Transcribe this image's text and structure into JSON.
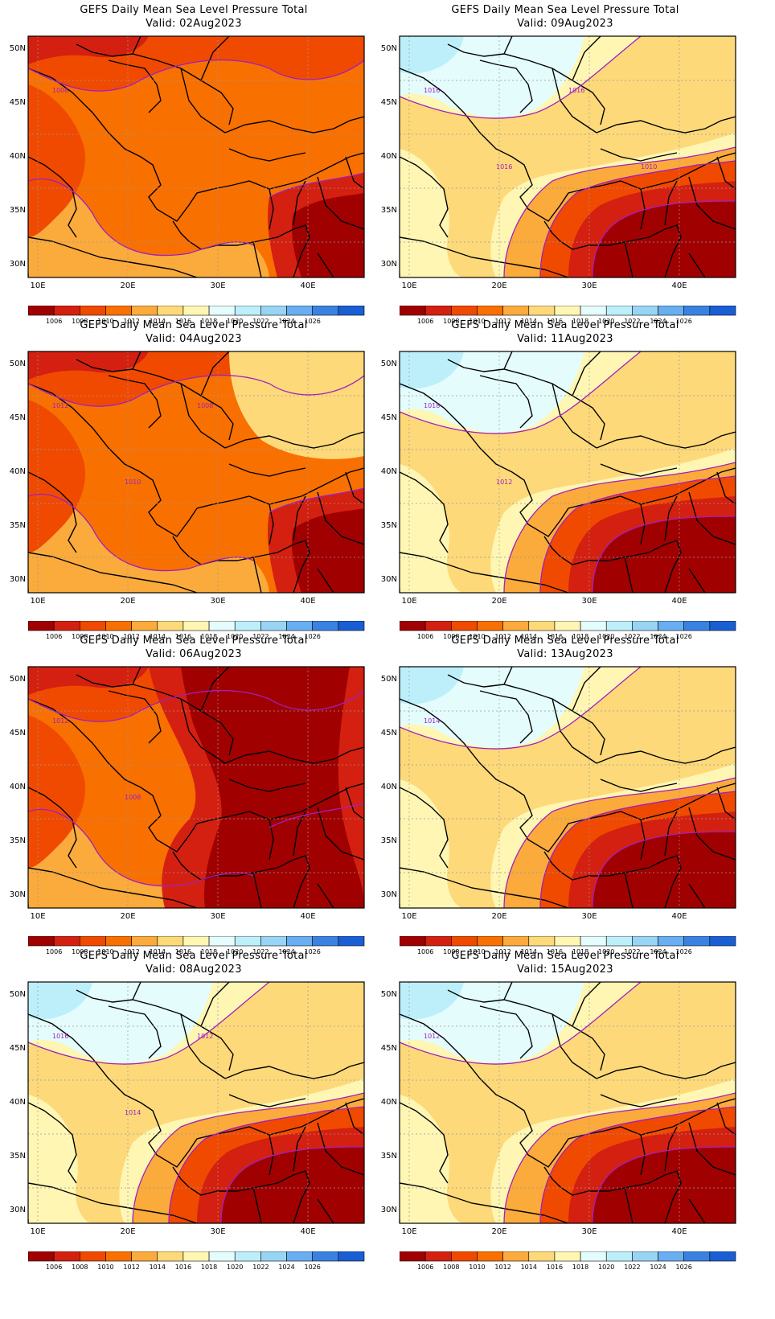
{
  "panels": [
    {
      "title": "GEFS Daily Mean Sea Level Pressure Total",
      "valid": "Valid: 02Aug2023",
      "contour_labels": [
        "1008"
      ],
      "pattern": "warm"
    },
    {
      "title": "GEFS Daily Mean Sea Level Pressure Total",
      "valid": "Valid: 09Aug2023",
      "contour_labels": [
        "1016",
        "1016",
        "1016",
        "1010"
      ],
      "pattern": "cool"
    },
    {
      "title": "GEFS Daily Mean Sea Level Pressure Total",
      "valid": "Valid: 04Aug2023",
      "contour_labels": [
        "1012",
        "1010",
        "1008"
      ],
      "pattern": "warm2"
    },
    {
      "title": "GEFS Daily Mean Sea Level Pressure Total",
      "valid": "Valid: 11Aug2023",
      "contour_labels": [
        "1018",
        "1012"
      ],
      "pattern": "cool2"
    },
    {
      "title": "GEFS Daily Mean Sea Level Pressure Total",
      "valid": "Valid: 06Aug2023",
      "contour_labels": [
        "1012",
        "1008"
      ],
      "pattern": "hot"
    },
    {
      "title": "GEFS Daily Mean Sea Level Pressure Total",
      "valid": "Valid: 13Aug2023",
      "contour_labels": [
        "1014"
      ],
      "pattern": "cool3"
    },
    {
      "title": "GEFS Daily Mean Sea Level Pressure Total",
      "valid": "Valid: 08Aug2023",
      "contour_labels": [
        "1016",
        "1014",
        "1012"
      ],
      "pattern": "cool4"
    },
    {
      "title": "GEFS Daily Mean Sea Level Pressure Total",
      "valid": "Valid: 15Aug2023",
      "contour_labels": [
        "1012"
      ],
      "pattern": "cool5"
    }
  ],
  "axes": {
    "lat_labels": [
      "50N",
      "45N",
      "40N",
      "35N",
      "30N"
    ],
    "lon_labels": [
      "10E",
      "20E",
      "30E",
      "40E"
    ]
  },
  "colorbar": {
    "labels": [
      "1006",
      "1008",
      "1010",
      "1012",
      "1014",
      "1016",
      "1018",
      "1020",
      "1022",
      "1024",
      "1026"
    ],
    "colors": [
      "#a00000",
      "#d42010",
      "#f04a00",
      "#f87000",
      "#fbaa3c",
      "#fdd97a",
      "#fff6b4",
      "#e4fcfc",
      "#bdeffa",
      "#98d4f4",
      "#68aef0",
      "#3a82e2",
      "#1a5ed4"
    ]
  }
}
